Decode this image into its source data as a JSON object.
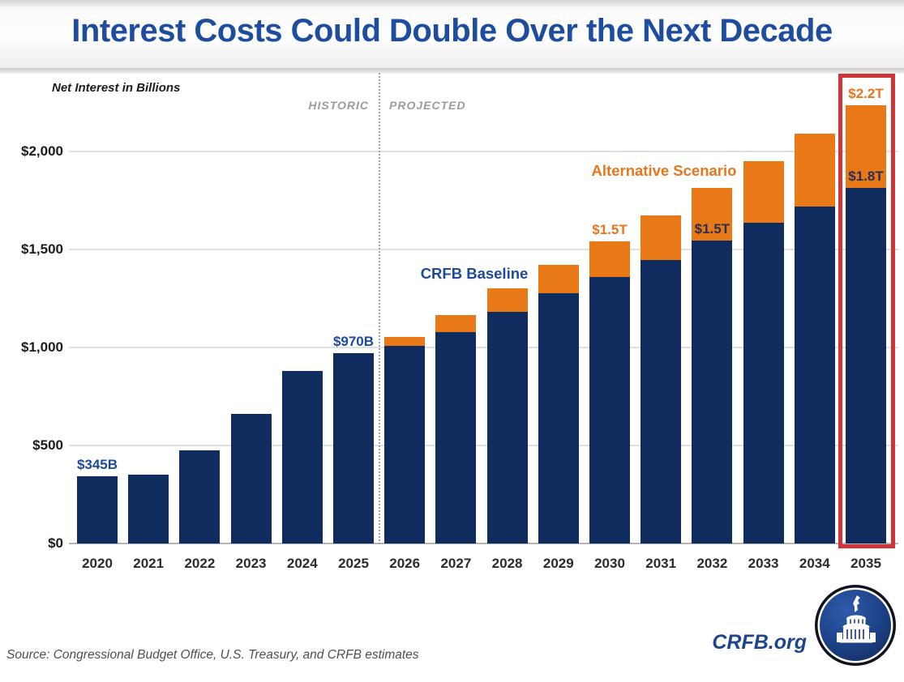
{
  "title": "Interest Costs Could Double Over the Next Decade",
  "chart": {
    "axis_note": "Net Interest in Billions",
    "zones": {
      "historic": "HISTORIC",
      "projected": "PROJECTED"
    },
    "series_labels": {
      "baseline": "CRFB Baseline",
      "alternative": "Alternative Scenario"
    },
    "y_axis": {
      "ticks": [
        {
          "label": "$2,000",
          "value": 2000
        },
        {
          "label": "$1,500",
          "value": 1500
        },
        {
          "label": "$1,000",
          "value": 1000
        },
        {
          "label": "$500",
          "value": 500
        },
        {
          "label": "$0",
          "value": 0
        }
      ]
    }
  },
  "chart_data": {
    "type": "bar",
    "stacked": true,
    "title": "Interest Costs Could Double Over the Next Decade",
    "xlabel": "",
    "ylabel": "Net Interest in Billions",
    "ylim": [
      0,
      2300
    ],
    "grid": "horizontal",
    "categories": [
      "2020",
      "2021",
      "2022",
      "2023",
      "2024",
      "2025",
      "2026",
      "2027",
      "2028",
      "2029",
      "2030",
      "2031",
      "2032",
      "2033",
      "2034",
      "2035"
    ],
    "series": [
      {
        "name": "CRFB Baseline",
        "color": "#102c5e",
        "values": [
          345,
          352,
          475,
          660,
          880,
          970,
          1010,
          1080,
          1180,
          1275,
          1360,
          1445,
          1545,
          1635,
          1720,
          1815
        ]
      },
      {
        "name": "Alternative Scenario (additional interest)",
        "color": "#e97817",
        "values": [
          0,
          0,
          0,
          0,
          0,
          0,
          45,
          85,
          120,
          145,
          180,
          230,
          270,
          315,
          370,
          420
        ]
      }
    ],
    "alternative_totals": [
      null,
      null,
      null,
      null,
      null,
      null,
      1055,
      1165,
      1300,
      1420,
      1540,
      1675,
      1815,
      1950,
      2090,
      2235
    ],
    "divider_after_category": "2025",
    "highlight_category": "2035",
    "highlight_color": "#cf3537",
    "annotations": [
      {
        "category": "2020",
        "text": "$345B",
        "style": "navy",
        "anchor": "total"
      },
      {
        "category": "2025",
        "text": "$970B",
        "style": "navy",
        "anchor": "total"
      },
      {
        "category": "2030",
        "text": "$1.5T",
        "style": "orange",
        "anchor": "total"
      },
      {
        "category": "2032",
        "text": "$1.5T",
        "style": "dark",
        "anchor": "baseline"
      },
      {
        "category": "2035",
        "text": "$1.8T",
        "style": "dark",
        "anchor": "baseline"
      },
      {
        "category": "2035",
        "text": "$2.2T",
        "style": "orange",
        "anchor": "total"
      }
    ]
  },
  "footer": {
    "source": "Source: Congressional Budget Office, U.S. Treasury, and CRFB estimates",
    "brand": "CRFB.org",
    "logo": "capitol-dome-icon"
  },
  "colors": {
    "title": "#1e4da0",
    "bar_baseline": "#102c5e",
    "bar_alternative": "#e97817",
    "label_navy": "#1c4a9c",
    "label_orange": "#e9751c",
    "label_dark": "#2b2f55",
    "zone_gray": "#9c9c9c",
    "highlight_red": "#cf3537"
  }
}
